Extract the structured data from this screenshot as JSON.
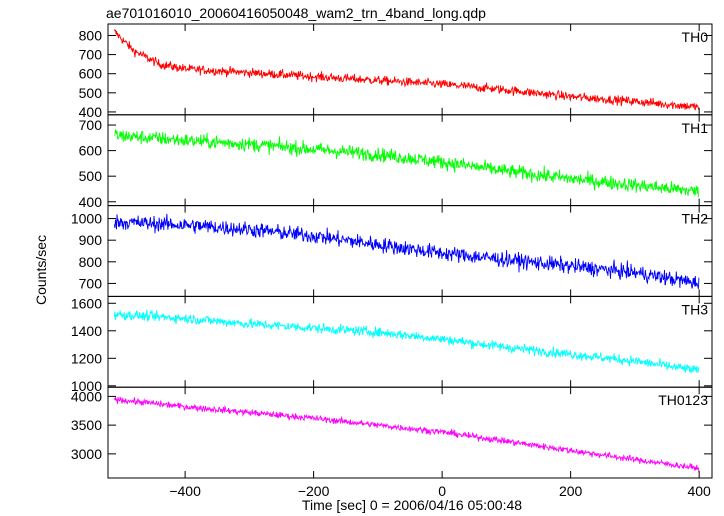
{
  "chart_data": {
    "type": "line",
    "title": "ae701016010_20060416050048_wam2_trn_4band_long.qdp",
    "xlabel": "Time [sec] 0 = 2006/04/16 05:00:48",
    "ylabel": "Counts/sec",
    "xlim": [
      -520,
      420
    ],
    "x_ticks": [
      -400,
      -200,
      0,
      200,
      400
    ],
    "x_tick_labels": [
      "−400",
      "−200",
      "0",
      "200",
      "400"
    ],
    "grid": false,
    "panels": [
      {
        "name": "TH0",
        "color": "#ff0000",
        "ylim": [
          385,
          860
        ],
        "y_ticks": [
          400,
          500,
          600,
          700,
          800
        ],
        "y_tick_labels": [
          "400",
          "500",
          "600",
          "700",
          "800"
        ],
        "x": [
          -510,
          -480,
          -440,
          -400,
          -300,
          -200,
          -100,
          0,
          100,
          200,
          300,
          400
        ],
        "y": [
          820,
          720,
          650,
          625,
          605,
          585,
          565,
          545,
          515,
          480,
          455,
          425
        ],
        "noise": 30
      },
      {
        "name": "TH1",
        "color": "#00ff00",
        "ylim": [
          385,
          740
        ],
        "y_ticks": [
          400,
          500,
          600,
          700
        ],
        "y_tick_labels": [
          "400",
          "500",
          "600",
          "700"
        ],
        "x": [
          -510,
          -400,
          -300,
          -200,
          -100,
          0,
          100,
          200,
          300,
          400
        ],
        "y": [
          660,
          640,
          625,
          605,
          585,
          555,
          520,
          490,
          465,
          440
        ],
        "noise": 35
      },
      {
        "name": "TH2",
        "color": "#0000ff",
        "ylim": [
          640,
          1060
        ],
        "y_ticks": [
          700,
          800,
          900,
          1000
        ],
        "y_tick_labels": [
          "700",
          "800",
          "900",
          "1000"
        ],
        "x": [
          -510,
          -400,
          -300,
          -200,
          -100,
          0,
          100,
          200,
          300,
          400
        ],
        "y": [
          985,
          970,
          950,
          920,
          880,
          840,
          810,
          780,
          750,
          700
        ],
        "noise": 45
      },
      {
        "name": "TH3",
        "color": "#00ffff",
        "ylim": [
          990,
          1650
        ],
        "y_ticks": [
          1000,
          1200,
          1400,
          1600
        ],
        "y_tick_labels": [
          "1000",
          "1200",
          "1400",
          "1600"
        ],
        "x": [
          -510,
          -400,
          -300,
          -200,
          -100,
          0,
          100,
          200,
          300,
          400
        ],
        "y": [
          1520,
          1490,
          1450,
          1420,
          1390,
          1340,
          1280,
          1230,
          1180,
          1110
        ],
        "noise": 45
      },
      {
        "name": "TH0123",
        "color": "#ff00ff",
        "ylim": [
          2580,
          4160
        ],
        "y_ticks": [
          3000,
          3500,
          4000
        ],
        "y_tick_labels": [
          "3000",
          "3500",
          "4000"
        ],
        "x": [
          -510,
          -400,
          -300,
          -200,
          -100,
          0,
          100,
          200,
          300,
          400
        ],
        "y": [
          3950,
          3820,
          3720,
          3620,
          3500,
          3380,
          3220,
          3060,
          2900,
          2750
        ],
        "noise": 70
      }
    ]
  }
}
